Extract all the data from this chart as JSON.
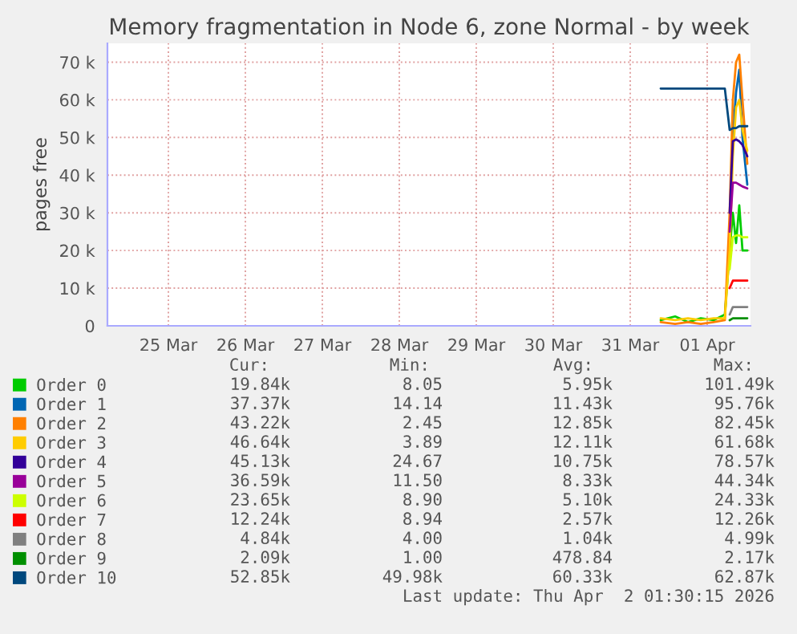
{
  "chart_data": {
    "type": "line",
    "title": "Memory fragmentation in Node 6, zone Normal - by week",
    "ylabel": "pages free",
    "x": [
      "2026-03-31T09:30",
      "2026-03-31T14:00",
      "2026-03-31T18:00",
      "2026-03-31T22:00",
      "2026-04-01T02:00",
      "2026-04-01T05:30",
      "2026-04-01T07:00",
      "2026-04-01T08:00",
      "2026-04-01T09:00",
      "2026-04-01T10:00",
      "2026-04-01T11:00",
      "2026-04-01T12:30"
    ],
    "xlim": [
      "2026-03-24T05:00",
      "2026-04-01T13:30"
    ],
    "xticks": [
      {
        "value": "2026-03-25",
        "label": "25 Mar"
      },
      {
        "value": "2026-03-26",
        "label": "26 Mar"
      },
      {
        "value": "2026-03-27",
        "label": "27 Mar"
      },
      {
        "value": "2026-03-28",
        "label": "28 Mar"
      },
      {
        "value": "2026-03-29",
        "label": "29 Mar"
      },
      {
        "value": "2026-03-30",
        "label": "30 Mar"
      },
      {
        "value": "2026-03-31",
        "label": "31 Mar"
      },
      {
        "value": "2026-04-01",
        "label": "01 Apr"
      }
    ],
    "ylim": [
      0,
      75000
    ],
    "yticks": [
      0,
      {
        "value": 10000,
        "label": "10 k"
      },
      {
        "value": 20000,
        "label": "20 k"
      },
      {
        "value": 30000,
        "label": "30 k"
      },
      {
        "value": 40000,
        "label": "40 k"
      },
      {
        "value": 50000,
        "label": "50 k"
      },
      {
        "value": 60000,
        "label": "60 k"
      },
      {
        "value": 70000,
        "label": "70 k"
      }
    ],
    "grid": true,
    "legend": "bottom",
    "marker": "none",
    "line_style": "solid",
    "series": [
      {
        "name": "Order 0",
        "color": "#00cc00",
        "values": [
          1500,
          2500,
          1000,
          2000,
          1500,
          3000,
          20000,
          30000,
          22000,
          32000,
          20000,
          20000
        ]
      },
      {
        "name": "Order 1",
        "color": "#0066b3",
        "values": [
          null,
          null,
          null,
          null,
          null,
          null,
          25000,
          50000,
          62000,
          68000,
          50000,
          37500
        ]
      },
      {
        "name": "Order 2",
        "color": "#ff8000",
        "values": [
          1000,
          500,
          1000,
          500,
          1000,
          1500,
          30000,
          60000,
          70000,
          72000,
          60000,
          43000
        ]
      },
      {
        "name": "Order 3",
        "color": "#ffcc00",
        "values": [
          2000,
          1500,
          2000,
          1500,
          2000,
          2000,
          20000,
          45000,
          58000,
          60000,
          52000,
          46500
        ]
      },
      {
        "name": "Order 4",
        "color": "#330099",
        "values": [
          null,
          null,
          null,
          null,
          null,
          null,
          30000,
          49000,
          49500,
          49000,
          48000,
          45000
        ]
      },
      {
        "name": "Order 5",
        "color": "#990099",
        "values": [
          null,
          null,
          null,
          null,
          null,
          null,
          25000,
          38000,
          38000,
          37500,
          37000,
          36500
        ]
      },
      {
        "name": "Order 6",
        "color": "#ccff00",
        "values": [
          null,
          null,
          null,
          null,
          null,
          null,
          15000,
          23500,
          24000,
          24000,
          23500,
          23500
        ]
      },
      {
        "name": "Order 7",
        "color": "#ff0000",
        "values": [
          null,
          null,
          null,
          null,
          null,
          null,
          10000,
          12000,
          12000,
          12000,
          12000,
          12000
        ]
      },
      {
        "name": "Order 8",
        "color": "#808080",
        "values": [
          null,
          null,
          null,
          null,
          null,
          null,
          3000,
          5000,
          5000,
          5000,
          5000,
          5000
        ]
      },
      {
        "name": "Order 9",
        "color": "#008f00",
        "values": [
          null,
          null,
          null,
          null,
          null,
          null,
          1500,
          2000,
          2000,
          2000,
          2000,
          2000
        ]
      },
      {
        "name": "Order 10",
        "color": "#00487d",
        "values": [
          63000,
          63000,
          63000,
          63000,
          63000,
          63000,
          52000,
          52500,
          52500,
          53000,
          53000,
          53000
        ]
      }
    ],
    "annotations": [
      "Cur:",
      "Min:",
      "Avg:",
      "Max:",
      "19.84k",
      "8.05",
      "5.95k",
      "101.49k",
      "37.37k",
      "14.14",
      "11.43k",
      "95.76k",
      "43.22k",
      "2.45",
      "12.85k",
      "82.45k",
      "46.64k",
      "3.89",
      "12.11k",
      "61.68k",
      "45.13k",
      "24.67",
      "10.75k",
      "78.57k",
      "36.59k",
      "11.50",
      "8.33k",
      "44.34k",
      "23.65k",
      "8.90",
      "5.10k",
      "24.33k",
      "12.24k",
      "8.94",
      "2.57k",
      "12.26k",
      "4.84k",
      "4.00",
      "1.04k",
      "4.99k",
      "2.09k",
      "1.00",
      "478.84",
      "2.17k",
      "52.85k",
      "49.98k",
      "60.33k",
      "62.87k",
      "Last update: Thu Apr  2 01:30:15 2026"
    ]
  }
}
